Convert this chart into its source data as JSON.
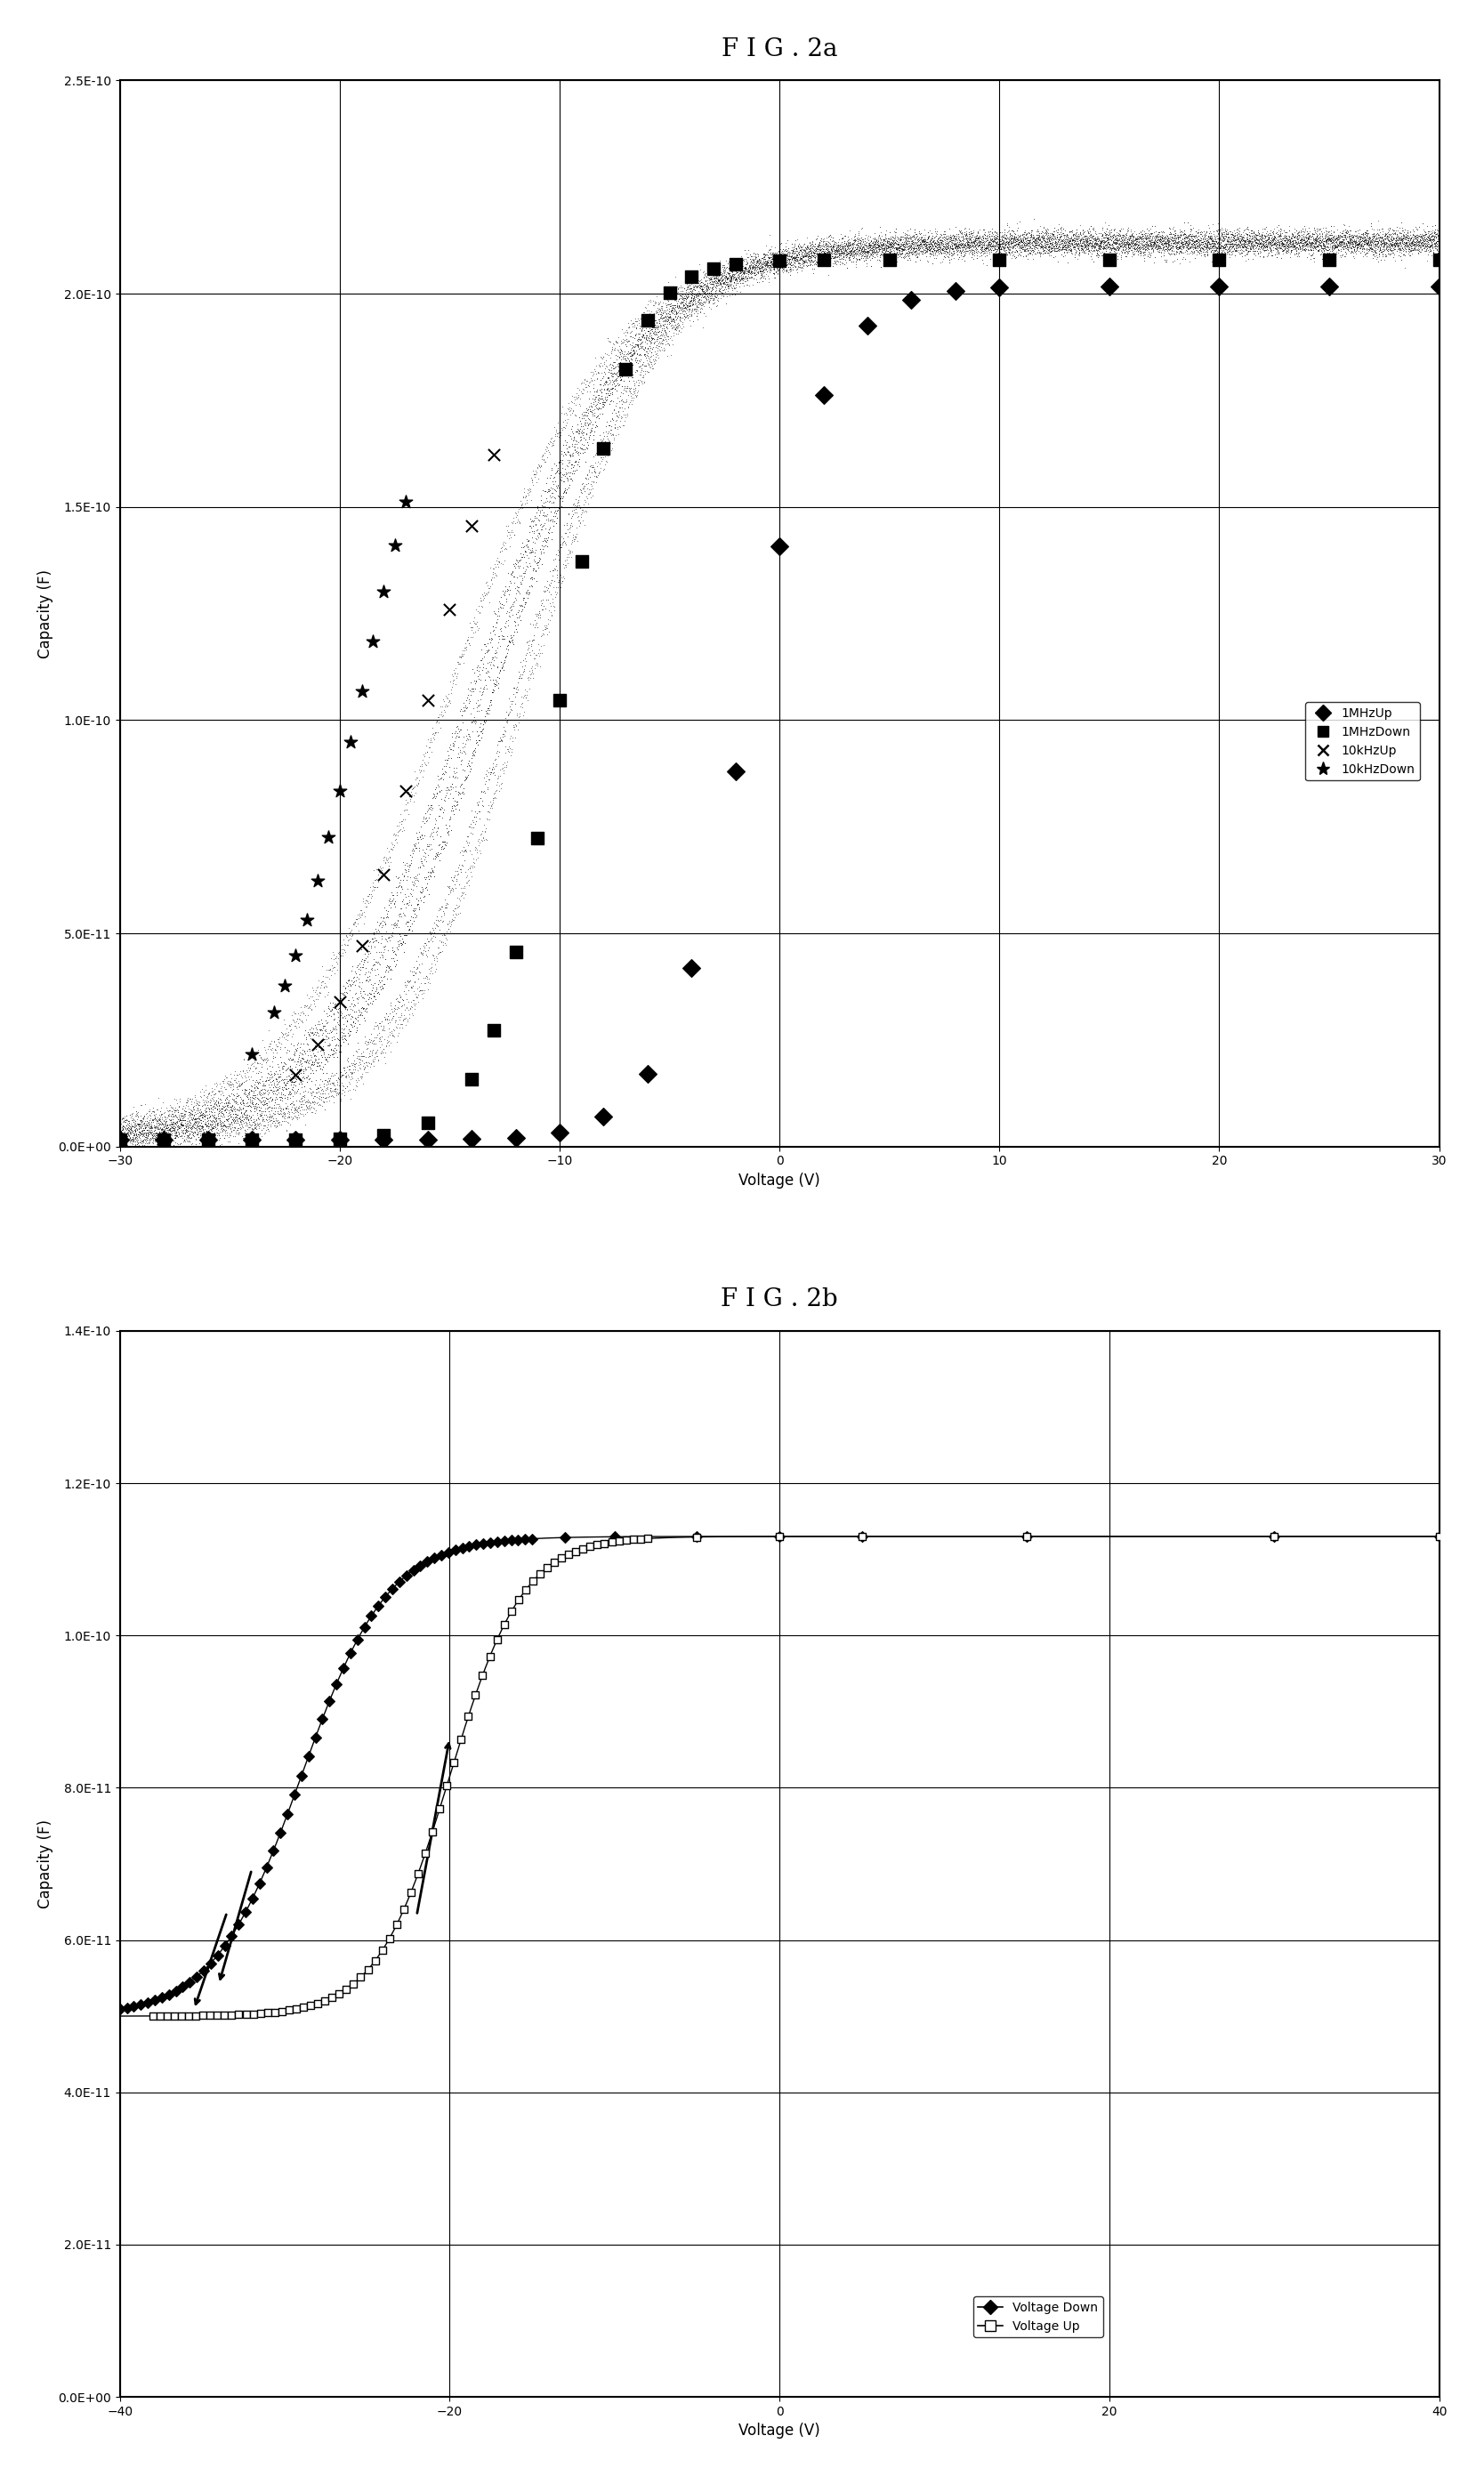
{
  "fig2a_title": "F I G . 2a",
  "fig2b_title": "F I G . 2b",
  "fig2a_xlabel": "Voltage (V)",
  "fig2a_ylabel": "Capacity (F)",
  "fig2b_xlabel": "Voltage (V)",
  "fig2b_ylabel": "Capacity (F)",
  "fig2a_xlim": [
    -30,
    30
  ],
  "fig2a_ylim": [
    0.0,
    2.5e-10
  ],
  "fig2b_xlim": [
    -40,
    40
  ],
  "fig2b_ylim": [
    0.0,
    1.4e-10
  ],
  "fig2a_xticks": [
    -30,
    -20,
    -10,
    0,
    10,
    20,
    30
  ],
  "fig2a_ytick_vals": [
    0.0,
    5e-11,
    1e-10,
    1.5e-10,
    2e-10,
    2.5e-10
  ],
  "fig2a_ytick_labels": [
    "0.0E+00",
    "5.0E-11",
    "1.0E-10",
    "1.5E-10",
    "2.0E-10",
    "2.5E-10"
  ],
  "fig2b_xticks": [
    -40,
    -20,
    0,
    20,
    40
  ],
  "fig2b_ytick_vals": [
    0.0,
    2e-11,
    4e-11,
    6e-11,
    8e-11,
    1e-10,
    1.2e-10,
    1.4e-10
  ],
  "fig2b_ytick_labels": [
    "0.0E+00",
    "2.0E-11",
    "4.0E-11",
    "6.0E-11",
    "8.0E-11",
    "1.0E-10",
    "1.2E-10",
    "1.4E-10"
  ],
  "title_fontsize": 20,
  "label_fontsize": 12,
  "tick_fontsize": 10,
  "legend_fontsize": 10
}
